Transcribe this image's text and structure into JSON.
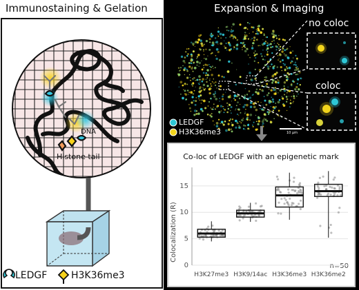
{
  "left": {
    "title": "Immunostaining & Gelation",
    "dna_label": "DNA",
    "histone_label": "Histone tail",
    "legend_ledgf": "LEDGF",
    "legend_h3k36me3": "H3K36me3"
  },
  "right_top": {
    "title": "Expansion & Imaging",
    "no_coloc_label": "no coloc",
    "coloc_label": "coloc",
    "legend_ledgf": "LEDGF",
    "legend_h3k36me3": "H3K36me3",
    "scalebar_label": "10 μm"
  },
  "colors": {
    "ledgf": "#2ec7d6",
    "h3k36me3": "#f2d41c",
    "accent_gray": "#555555"
  },
  "chart_data": {
    "type": "box",
    "title": "Co-loc of LEDGF with an epigenetic mark",
    "xlabel": "",
    "ylabel": "Colocalization (R)",
    "ylim": [
      0,
      18.5
    ],
    "yticks": [
      0,
      5,
      10,
      15
    ],
    "categories": [
      "H3K27me3",
      "H3K9/14ac",
      "H3K36me3",
      "H3K36me2"
    ],
    "boxes": [
      {
        "name": "H3K27me3",
        "min": 4.5,
        "q1": 5.3,
        "median": 6.0,
        "q3": 6.8,
        "max": 8.3
      },
      {
        "name": "H3K9/14ac",
        "min": 8.2,
        "q1": 9.1,
        "median": 9.8,
        "q3": 10.4,
        "max": 11.8
      },
      {
        "name": "H3K36me3",
        "min": 8.6,
        "q1": 11.0,
        "median": 13.2,
        "q3": 14.8,
        "max": 17.5
      },
      {
        "name": "H3K36me2",
        "min": 5.2,
        "q1": 13.0,
        "median": 14.0,
        "q3": 15.3,
        "max": 17.8
      }
    ],
    "annotation": "n=50"
  }
}
